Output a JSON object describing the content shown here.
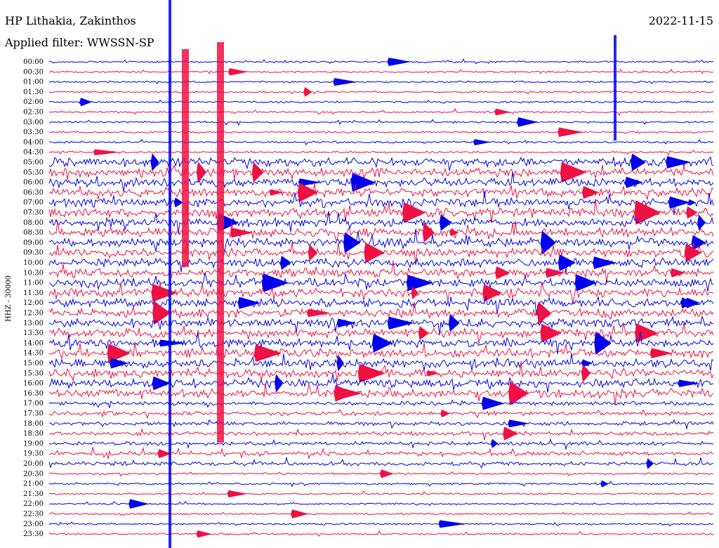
{
  "header": {
    "title": "HP Lithakia, Zakinthos",
    "subtitle": "Applied filter: WWSSN-SP",
    "date": "2022-11-15"
  },
  "chart_data": {
    "type": "line",
    "ylabel": "HHZ - 30000",
    "row_labels": [
      "00:00",
      "00:30",
      "01:00",
      "01:30",
      "02:00",
      "02:30",
      "03:00",
      "03:30",
      "04:00",
      "04:30",
      "05:00",
      "05:30",
      "06:00",
      "06:30",
      "07:00",
      "07:30",
      "08:00",
      "08:30",
      "09:00",
      "09:30",
      "10:00",
      "10:30",
      "11:00",
      "11:30",
      "12:00",
      "12:30",
      "13:00",
      "13:30",
      "14:00",
      "14:30",
      "15:00",
      "15:30",
      "16:00",
      "16:30",
      "17:00",
      "17:30",
      "18:00",
      "18:30",
      "19:00",
      "19:30",
      "20:00",
      "20:30",
      "21:00",
      "21:30",
      "22:00",
      "22:30",
      "23:00",
      "23:30"
    ],
    "series_colors": [
      "#0000ee",
      "#ee1144"
    ],
    "x_range_minutes": [
      0,
      30
    ]
  }
}
